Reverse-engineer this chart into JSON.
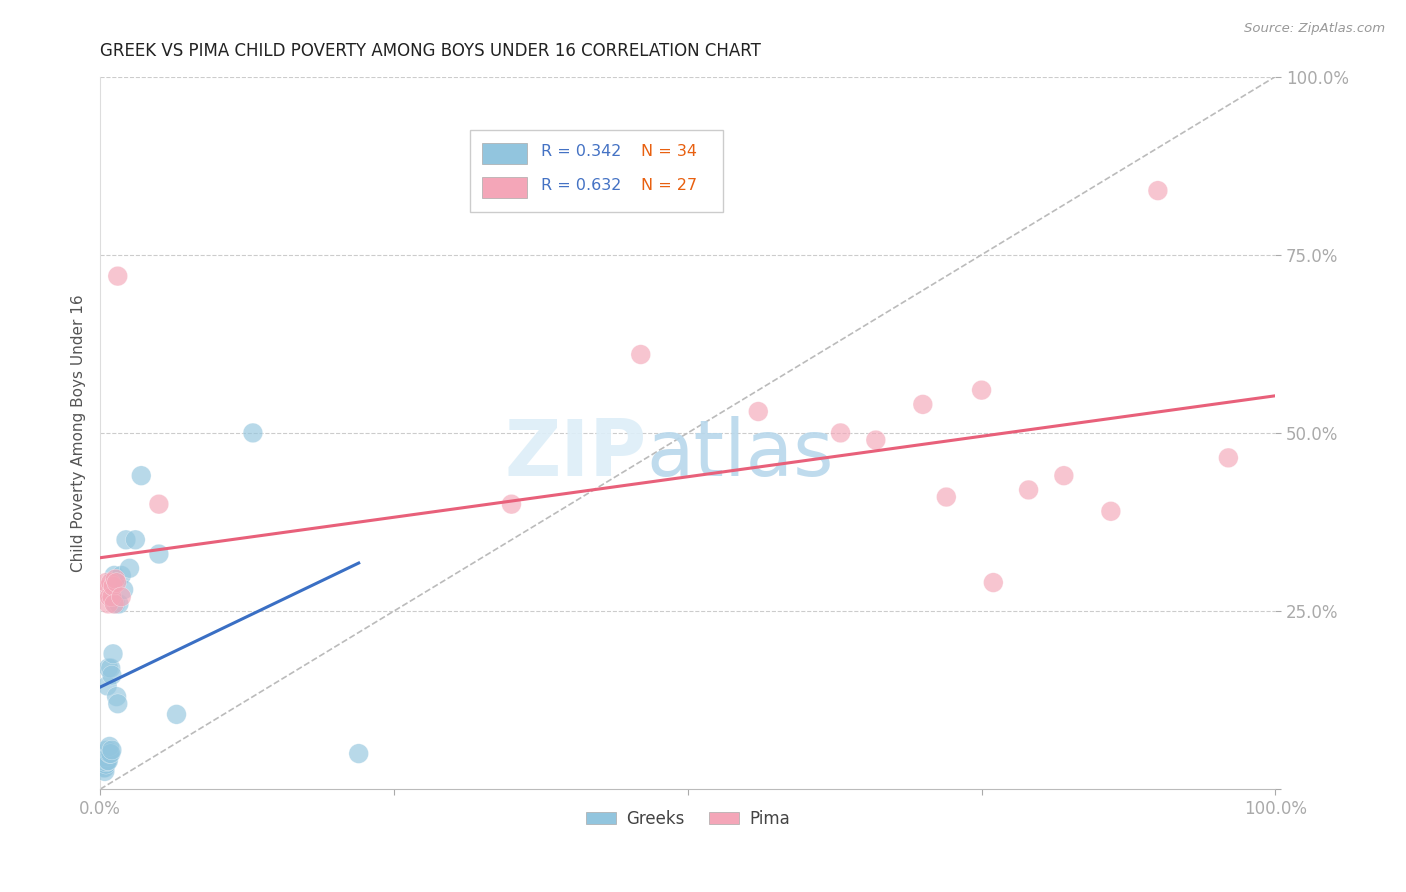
{
  "title": "GREEK VS PIMA CHILD POVERTY AMONG BOYS UNDER 16 CORRELATION CHART",
  "source": "Source: ZipAtlas.com",
  "ylabel": "Child Poverty Among Boys Under 16",
  "legend_greek_R": "0.342",
  "legend_greek_N": "34",
  "legend_pima_R": "0.632",
  "legend_pima_N": "27",
  "xlim": [
    0.0,
    1.0
  ],
  "ylim": [
    0.0,
    1.0
  ],
  "greek_color": "#92C5DE",
  "pima_color": "#F4A6B8",
  "greek_line_color": "#3A6FC4",
  "pima_line_color": "#E8607A",
  "diagonal_color": "#BBBBBB",
  "greek_x": [
    0.002,
    0.003,
    0.003,
    0.004,
    0.004,
    0.005,
    0.005,
    0.005,
    0.006,
    0.006,
    0.007,
    0.007,
    0.008,
    0.008,
    0.009,
    0.009,
    0.01,
    0.01,
    0.011,
    0.012,
    0.013,
    0.014,
    0.015,
    0.016,
    0.018,
    0.02,
    0.022,
    0.025,
    0.03,
    0.035,
    0.05,
    0.065,
    0.13,
    0.22
  ],
  "greek_y": [
    0.04,
    0.03,
    0.045,
    0.03,
    0.025,
    0.035,
    0.04,
    0.05,
    0.04,
    0.145,
    0.04,
    0.17,
    0.05,
    0.06,
    0.05,
    0.17,
    0.055,
    0.16,
    0.19,
    0.3,
    0.26,
    0.13,
    0.12,
    0.26,
    0.3,
    0.28,
    0.35,
    0.31,
    0.35,
    0.44,
    0.33,
    0.105,
    0.5,
    0.05
  ],
  "greek_sizes": [
    400,
    200,
    200,
    200,
    200,
    200,
    250,
    350,
    200,
    200,
    200,
    200,
    200,
    200,
    200,
    200,
    200,
    200,
    200,
    200,
    200,
    200,
    200,
    200,
    200,
    200,
    200,
    200,
    200,
    200,
    200,
    200,
    200,
    200
  ],
  "pima_x": [
    0.004,
    0.005,
    0.007,
    0.008,
    0.009,
    0.01,
    0.011,
    0.012,
    0.013,
    0.014,
    0.015,
    0.018,
    0.05,
    0.35,
    0.46,
    0.56,
    0.63,
    0.66,
    0.7,
    0.72,
    0.75,
    0.76,
    0.79,
    0.82,
    0.86,
    0.9,
    0.96
  ],
  "pima_y": [
    0.28,
    0.29,
    0.26,
    0.27,
    0.29,
    0.27,
    0.285,
    0.26,
    0.295,
    0.29,
    0.72,
    0.27,
    0.4,
    0.4,
    0.61,
    0.53,
    0.5,
    0.49,
    0.54,
    0.41,
    0.56,
    0.29,
    0.42,
    0.44,
    0.39,
    0.84,
    0.465
  ],
  "pima_sizes": [
    200,
    200,
    200,
    200,
    200,
    200,
    200,
    200,
    200,
    200,
    200,
    200,
    200,
    200,
    200,
    200,
    200,
    200,
    200,
    200,
    200,
    200,
    200,
    200,
    200,
    200,
    200
  ]
}
